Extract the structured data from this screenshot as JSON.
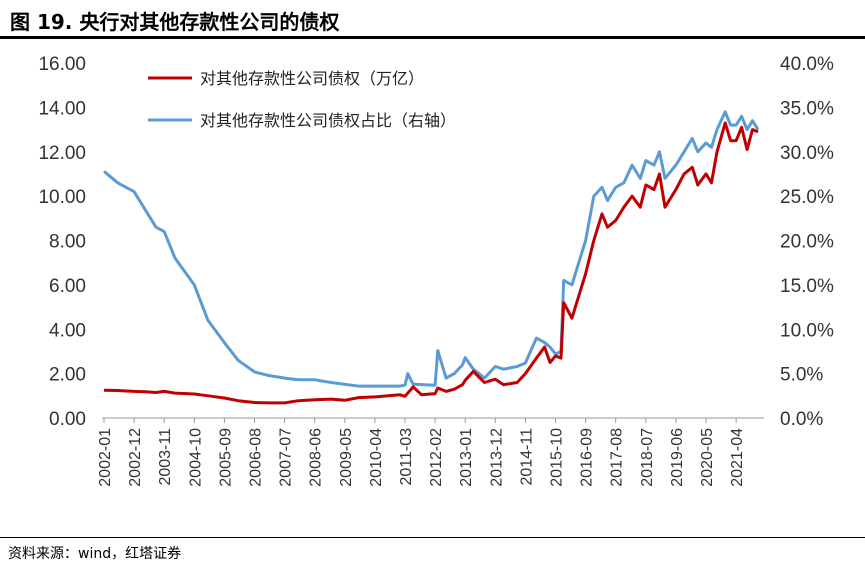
{
  "header": {
    "title": "图 19. 央行对其他存款性公司的债权"
  },
  "footer": {
    "source": "资料来源：wind，红塔证券"
  },
  "chart_data": {
    "type": "line",
    "title": "图 19. 央行对其他存款性公司的债权",
    "legend_position": "top-left",
    "grid": false,
    "x_ticks": [
      "2002-01",
      "2002-12",
      "2003-11",
      "2004-10",
      "2005-09",
      "2006-08",
      "2007-07",
      "2008-06",
      "2009-05",
      "2010-04",
      "2011-03",
      "2012-02",
      "2013-01",
      "2013-12",
      "2014-11",
      "2015-10",
      "2016-09",
      "2017-08",
      "2018-07",
      "2019-06",
      "2020-05",
      "2021-04"
    ],
    "y_left": {
      "ticks": [
        "0.00",
        "2.00",
        "4.00",
        "6.00",
        "8.00",
        "10.00",
        "12.00",
        "14.00",
        "16.00"
      ],
      "ylim": [
        0,
        16
      ]
    },
    "y_right": {
      "ticks": [
        "0.0%",
        "5.0%",
        "10.0%",
        "15.0%",
        "20.0%",
        "25.0%",
        "30.0%",
        "35.0%",
        "40.0%"
      ],
      "ylim": [
        0,
        40
      ]
    },
    "series": [
      {
        "name": "对其他存款性公司债权（万亿）",
        "axis": "left",
        "color": "#c00000",
        "points": [
          [
            "2002-01",
            1.25
          ],
          [
            "2002-06",
            1.24
          ],
          [
            "2002-12",
            1.2
          ],
          [
            "2003-04",
            1.18
          ],
          [
            "2003-08",
            1.15
          ],
          [
            "2003-11",
            1.2
          ],
          [
            "2004-03",
            1.12
          ],
          [
            "2004-10",
            1.08
          ],
          [
            "2005-03",
            1.0
          ],
          [
            "2005-09",
            0.9
          ],
          [
            "2006-02",
            0.78
          ],
          [
            "2006-08",
            0.7
          ],
          [
            "2007-01",
            0.68
          ],
          [
            "2007-07",
            0.68
          ],
          [
            "2007-12",
            0.78
          ],
          [
            "2008-06",
            0.82
          ],
          [
            "2008-12",
            0.85
          ],
          [
            "2009-05",
            0.8
          ],
          [
            "2009-10",
            0.92
          ],
          [
            "2010-04",
            0.95
          ],
          [
            "2010-09",
            1.0
          ],
          [
            "2011-01",
            1.05
          ],
          [
            "2011-03",
            0.98
          ],
          [
            "2011-06",
            1.4
          ],
          [
            "2011-09",
            1.05
          ],
          [
            "2012-02",
            1.1
          ],
          [
            "2012-03",
            1.35
          ],
          [
            "2012-06",
            1.2
          ],
          [
            "2012-09",
            1.3
          ],
          [
            "2012-12",
            1.5
          ],
          [
            "2013-01",
            1.7
          ],
          [
            "2013-04",
            2.1
          ],
          [
            "2013-08",
            1.6
          ],
          [
            "2013-12",
            1.75
          ],
          [
            "2014-03",
            1.5
          ],
          [
            "2014-08",
            1.6
          ],
          [
            "2014-11",
            2.0
          ],
          [
            "2015-03",
            2.7
          ],
          [
            "2015-06",
            3.2
          ],
          [
            "2015-08",
            2.5
          ],
          [
            "2015-10",
            2.8
          ],
          [
            "2015-12",
            2.7
          ],
          [
            "2016-01",
            5.2
          ],
          [
            "2016-04",
            4.5
          ],
          [
            "2016-09",
            6.5
          ],
          [
            "2016-12",
            8.0
          ],
          [
            "2017-03",
            9.2
          ],
          [
            "2017-05",
            8.6
          ],
          [
            "2017-08",
            8.9
          ],
          [
            "2017-11",
            9.5
          ],
          [
            "2018-02",
            10.0
          ],
          [
            "2018-05",
            9.5
          ],
          [
            "2018-07",
            10.5
          ],
          [
            "2018-10",
            10.3
          ],
          [
            "2018-12",
            11.0
          ],
          [
            "2019-02",
            9.5
          ],
          [
            "2019-06",
            10.3
          ],
          [
            "2019-09",
            11.0
          ],
          [
            "2019-12",
            11.3
          ],
          [
            "2020-02",
            10.5
          ],
          [
            "2020-05",
            11.0
          ],
          [
            "2020-07",
            10.6
          ],
          [
            "2020-09",
            12.0
          ],
          [
            "2020-12",
            13.3
          ],
          [
            "2021-02",
            12.5
          ],
          [
            "2021-04",
            12.5
          ],
          [
            "2021-06",
            13.1
          ],
          [
            "2021-08",
            12.1
          ],
          [
            "2021-10",
            13.0
          ],
          [
            "2021-12",
            12.9
          ]
        ]
      },
      {
        "name": "对其他存款性公司债权占比（右轴）",
        "axis": "right",
        "color": "#5b9bd5",
        "points": [
          [
            "2002-01",
            27.8
          ],
          [
            "2002-06",
            26.5
          ],
          [
            "2002-12",
            25.5
          ],
          [
            "2003-04",
            23.5
          ],
          [
            "2003-08",
            21.5
          ],
          [
            "2003-11",
            21.0
          ],
          [
            "2004-03",
            18.0
          ],
          [
            "2004-10",
            15.0
          ],
          [
            "2005-03",
            11.0
          ],
          [
            "2005-09",
            8.5
          ],
          [
            "2006-02",
            6.5
          ],
          [
            "2006-08",
            5.2
          ],
          [
            "2007-01",
            4.8
          ],
          [
            "2007-07",
            4.5
          ],
          [
            "2007-12",
            4.3
          ],
          [
            "2008-06",
            4.3
          ],
          [
            "2008-12",
            4.0
          ],
          [
            "2009-05",
            3.8
          ],
          [
            "2009-10",
            3.6
          ],
          [
            "2010-04",
            3.6
          ],
          [
            "2010-09",
            3.6
          ],
          [
            "2011-01",
            3.6
          ],
          [
            "2011-03",
            3.7
          ],
          [
            "2011-04",
            5.0
          ],
          [
            "2011-06",
            3.8
          ],
          [
            "2012-02",
            3.7
          ],
          [
            "2012-03",
            7.6
          ],
          [
            "2012-06",
            4.5
          ],
          [
            "2012-09",
            5.0
          ],
          [
            "2012-12",
            6.0
          ],
          [
            "2013-01",
            6.8
          ],
          [
            "2013-04",
            5.5
          ],
          [
            "2013-08",
            4.5
          ],
          [
            "2013-12",
            5.8
          ],
          [
            "2014-03",
            5.5
          ],
          [
            "2014-08",
            5.8
          ],
          [
            "2014-11",
            6.2
          ],
          [
            "2015-03",
            9.0
          ],
          [
            "2015-06",
            8.5
          ],
          [
            "2015-08",
            8.0
          ],
          [
            "2015-10",
            7.2
          ],
          [
            "2015-12",
            7.5
          ],
          [
            "2016-01",
            15.5
          ],
          [
            "2016-04",
            15.0
          ],
          [
            "2016-09",
            20.0
          ],
          [
            "2016-12",
            25.0
          ],
          [
            "2017-03",
            26.0
          ],
          [
            "2017-05",
            24.5
          ],
          [
            "2017-08",
            26.0
          ],
          [
            "2017-11",
            26.5
          ],
          [
            "2018-02",
            28.5
          ],
          [
            "2018-05",
            27.0
          ],
          [
            "2018-07",
            29.0
          ],
          [
            "2018-10",
            28.5
          ],
          [
            "2018-12",
            30.0
          ],
          [
            "2019-02",
            27.0
          ],
          [
            "2019-06",
            28.5
          ],
          [
            "2019-09",
            30.0
          ],
          [
            "2019-12",
            31.5
          ],
          [
            "2020-02",
            30.0
          ],
          [
            "2020-05",
            31.0
          ],
          [
            "2020-07",
            30.5
          ],
          [
            "2020-09",
            32.5
          ],
          [
            "2020-12",
            34.5
          ],
          [
            "2021-02",
            33.0
          ],
          [
            "2021-04",
            33.0
          ],
          [
            "2021-06",
            34.0
          ],
          [
            "2021-08",
            32.5
          ],
          [
            "2021-10",
            33.5
          ],
          [
            "2021-12",
            32.5
          ]
        ]
      }
    ]
  }
}
